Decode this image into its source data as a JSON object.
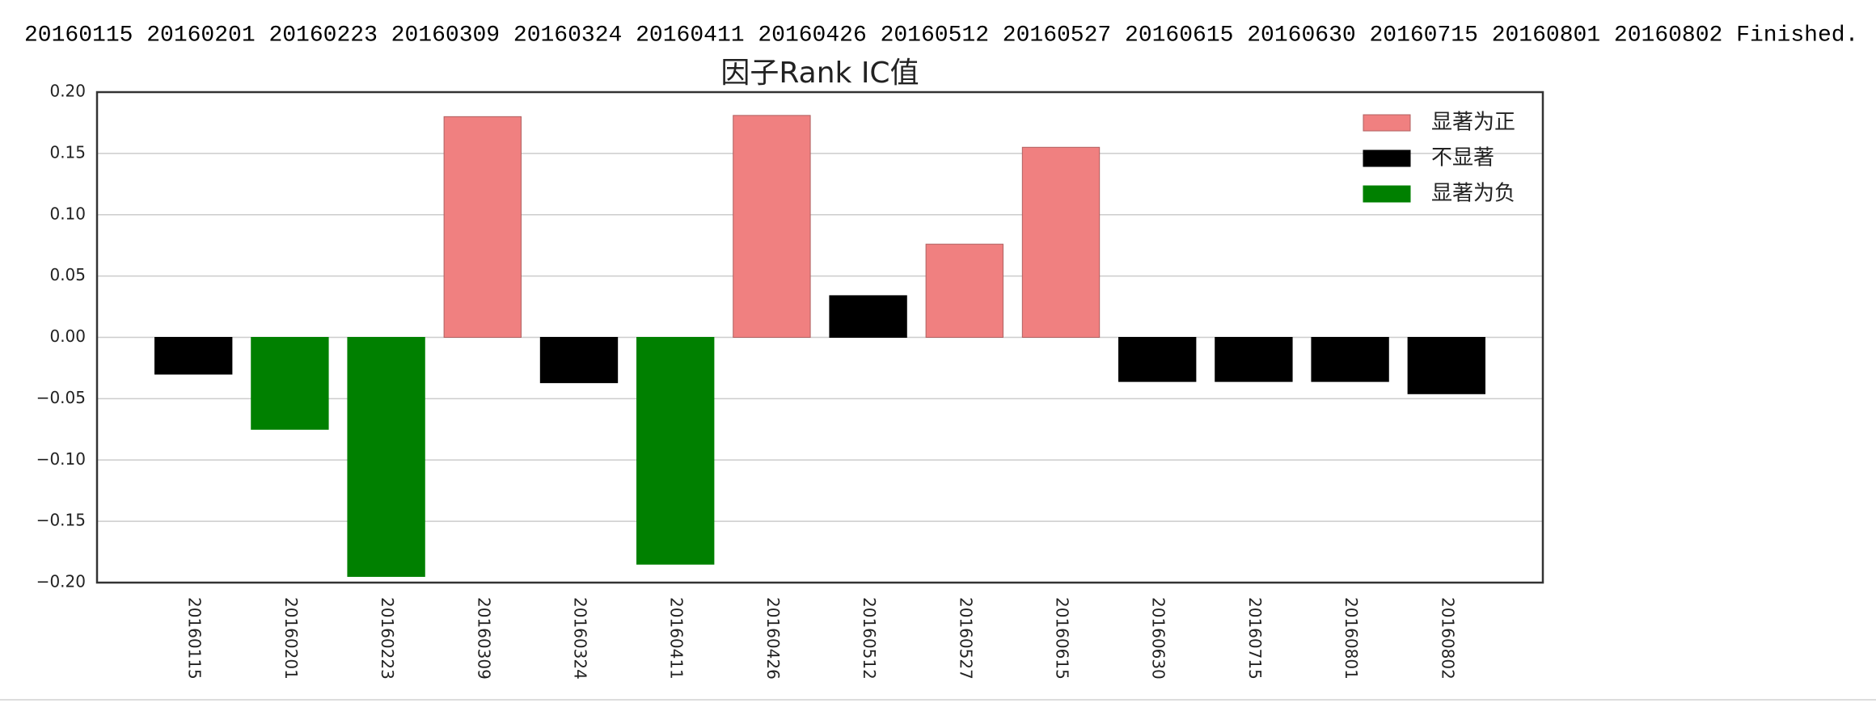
{
  "output": "20160115 20160201 20160223 20160309 20160324 20160411 20160426 20160512 20160527 20160615 20160630 20160715 20160801 20160802 Finished.",
  "chart_data": {
    "type": "bar",
    "title": "因子Rank IC值",
    "categories": [
      "20160115",
      "20160201",
      "20160223",
      "20160309",
      "20160324",
      "20160411",
      "20160426",
      "20160512",
      "20160527",
      "20160615",
      "20160630",
      "20160715",
      "20160801",
      "20160802"
    ],
    "series": [
      {
        "name": "显著为正",
        "color": "#f08080",
        "values": [
          null,
          null,
          null,
          0.18,
          null,
          null,
          0.181,
          null,
          0.076,
          0.155,
          null,
          null,
          null,
          null
        ]
      },
      {
        "name": "不显著",
        "color": "#000000",
        "values": [
          -0.03,
          null,
          null,
          null,
          -0.037,
          null,
          null,
          0.034,
          null,
          null,
          -0.036,
          -0.036,
          -0.036,
          -0.046
        ]
      },
      {
        "name": "显著为负",
        "color": "#008000",
        "values": [
          null,
          -0.075,
          -0.195,
          null,
          null,
          -0.185,
          null,
          null,
          null,
          null,
          null,
          null,
          null,
          null
        ]
      }
    ],
    "ylim": [
      -0.2,
      0.2
    ],
    "yticks": [
      {
        "value": -0.2,
        "label": "−0.20"
      },
      {
        "value": -0.15,
        "label": "−0.15"
      },
      {
        "value": -0.1,
        "label": "−0.10"
      },
      {
        "value": -0.05,
        "label": "−0.05"
      },
      {
        "value": 0,
        "label": "0.00"
      },
      {
        "value": 0.05,
        "label": "0.05"
      },
      {
        "value": 0.1,
        "label": "0.10"
      },
      {
        "value": 0.15,
        "label": "0.15"
      },
      {
        "value": 0.2,
        "label": "0.20"
      }
    ],
    "grid": true,
    "legend": "upper right"
  }
}
